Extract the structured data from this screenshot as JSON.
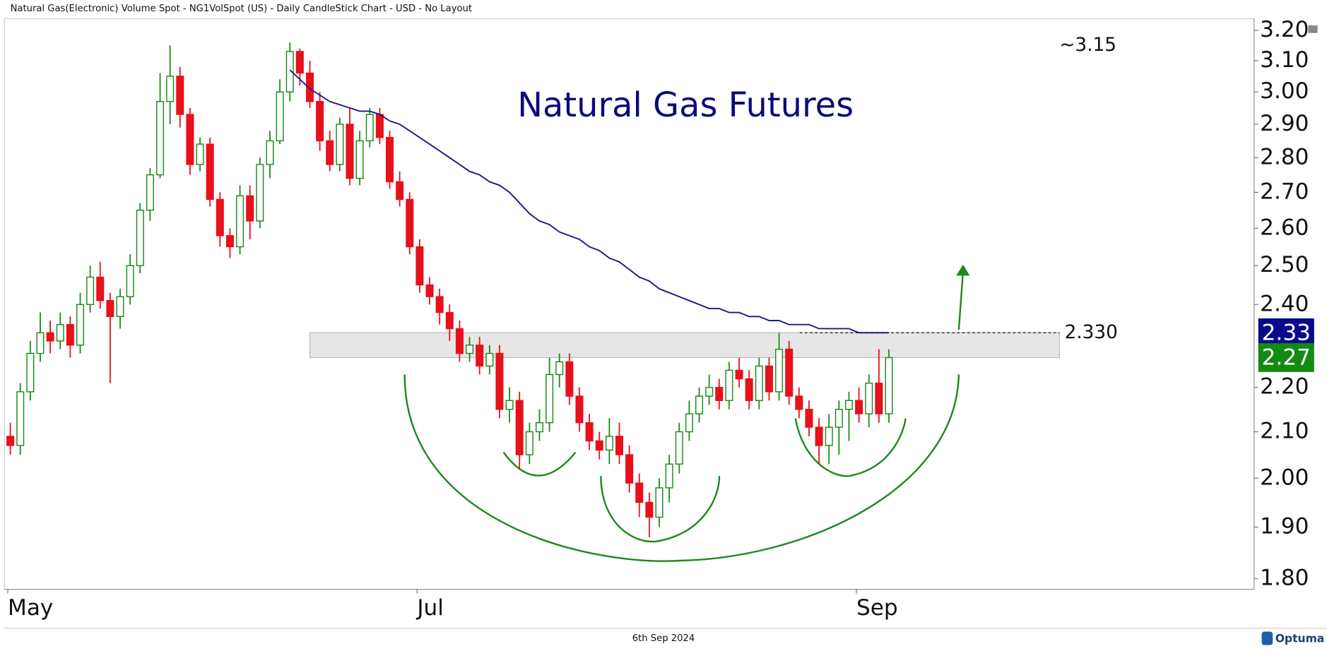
{
  "header": "Natural Gas(Electronic) Volume Spot - NG1VolSpot (US) - Daily CandleStick Chart - USD - No Layout",
  "footer": "6th Sep 2024",
  "brand": "Optuma",
  "chart_data": {
    "type": "candlestick",
    "title": "Natural Gas Futures",
    "annotation": "~3.15",
    "log_scale": true,
    "grid": false,
    "up_color": "#1a8a1a",
    "down_color": "#e8101a",
    "categories": [
      "May",
      null,
      null,
      null,
      null,
      null,
      null,
      null,
      null,
      null,
      null,
      null,
      null,
      null,
      null,
      null,
      null,
      null,
      null,
      null,
      null,
      null,
      null,
      null,
      null,
      null,
      null,
      null,
      null,
      null,
      null,
      null,
      null,
      null,
      null,
      null,
      null,
      null,
      null,
      null,
      null,
      "Jul",
      null,
      null,
      null,
      null,
      null,
      null,
      null,
      null,
      null,
      null,
      null,
      null,
      null,
      null,
      null,
      null,
      null,
      null,
      null,
      null,
      null,
      null,
      null,
      null,
      null,
      null,
      null,
      null,
      null,
      null,
      null,
      null,
      null,
      null,
      null,
      null,
      null,
      null,
      null,
      null,
      null,
      null,
      null,
      "Sep",
      null,
      null,
      null
    ],
    "open": [
      2.09,
      2.07,
      2.19,
      2.28,
      2.33,
      2.31,
      2.35,
      2.3,
      2.4,
      2.47,
      2.41,
      2.37,
      2.42,
      2.5,
      2.65,
      2.75,
      2.97,
      3.05,
      2.93,
      2.78,
      2.84,
      2.68,
      2.58,
      2.55,
      2.69,
      2.62,
      2.78,
      2.85,
      3.0,
      3.13,
      3.06,
      2.97,
      2.85,
      2.78,
      2.9,
      2.74,
      2.85,
      2.93,
      2.86,
      2.73,
      2.68,
      2.55,
      2.45,
      2.42,
      2.38,
      2.34,
      2.28,
      2.3,
      2.25,
      2.28,
      2.15,
      2.17,
      2.05,
      2.1,
      2.12,
      2.23,
      2.26,
      2.18,
      2.12,
      2.08,
      2.06,
      2.09,
      2.05,
      1.99,
      1.95,
      1.92,
      1.98,
      2.03,
      2.1,
      2.14,
      2.18,
      2.2,
      2.17,
      2.24,
      2.22,
      2.17,
      2.25,
      2.19,
      2.29,
      2.18,
      2.15,
      2.11,
      2.07,
      2.11,
      2.15,
      2.17,
      2.14,
      2.21,
      2.14
    ],
    "high": [
      2.12,
      2.21,
      2.31,
      2.38,
      2.36,
      2.38,
      2.37,
      2.43,
      2.5,
      2.51,
      2.43,
      2.44,
      2.53,
      2.67,
      2.77,
      3.06,
      3.15,
      3.08,
      2.95,
      2.86,
      2.86,
      2.7,
      2.6,
      2.72,
      2.72,
      2.8,
      2.88,
      3.04,
      3.16,
      3.14,
      3.1,
      3.0,
      2.88,
      2.92,
      2.95,
      2.88,
      2.95,
      2.95,
      2.88,
      2.76,
      2.7,
      2.57,
      2.47,
      2.44,
      2.4,
      2.36,
      2.32,
      2.32,
      2.3,
      2.3,
      2.2,
      2.19,
      2.12,
      2.15,
      2.27,
      2.28,
      2.28,
      2.2,
      2.14,
      2.1,
      2.13,
      2.12,
      2.07,
      2.01,
      1.97,
      2.0,
      2.05,
      2.12,
      2.17,
      2.2,
      2.23,
      2.22,
      2.26,
      2.27,
      2.24,
      2.27,
      2.27,
      2.33,
      2.31,
      2.2,
      2.17,
      2.13,
      2.14,
      2.17,
      2.19,
      2.2,
      2.23,
      2.29,
      2.29
    ],
    "low": [
      2.05,
      2.05,
      2.17,
      2.26,
      2.28,
      2.29,
      2.27,
      2.28,
      2.38,
      2.39,
      2.21,
      2.34,
      2.4,
      2.48,
      2.62,
      2.74,
      2.9,
      2.89,
      2.75,
      2.76,
      2.66,
      2.55,
      2.52,
      2.53,
      2.57,
      2.6,
      2.74,
      2.84,
      2.97,
      3.02,
      2.95,
      2.82,
      2.76,
      2.76,
      2.72,
      2.72,
      2.83,
      2.84,
      2.71,
      2.66,
      2.53,
      2.43,
      2.4,
      2.35,
      2.31,
      2.26,
      2.26,
      2.23,
      2.23,
      2.13,
      2.12,
      2.02,
      2.03,
      2.08,
      2.1,
      2.2,
      2.16,
      2.1,
      2.06,
      2.04,
      2.03,
      2.03,
      1.97,
      1.92,
      1.88,
      1.9,
      1.95,
      2.01,
      2.08,
      2.12,
      2.16,
      2.15,
      2.15,
      2.2,
      2.15,
      2.15,
      2.17,
      2.17,
      2.16,
      2.13,
      2.09,
      2.03,
      2.03,
      2.05,
      2.08,
      2.12,
      2.11,
      2.12,
      2.12
    ],
    "close": [
      2.07,
      2.19,
      2.28,
      2.33,
      2.31,
      2.35,
      2.3,
      2.4,
      2.47,
      2.41,
      2.37,
      2.42,
      2.5,
      2.65,
      2.75,
      2.97,
      3.05,
      2.93,
      2.78,
      2.84,
      2.68,
      2.58,
      2.55,
      2.69,
      2.62,
      2.78,
      2.85,
      3.0,
      3.13,
      3.06,
      2.97,
      2.85,
      2.78,
      2.9,
      2.74,
      2.85,
      2.93,
      2.86,
      2.73,
      2.68,
      2.55,
      2.45,
      2.42,
      2.38,
      2.34,
      2.28,
      2.3,
      2.25,
      2.28,
      2.15,
      2.17,
      2.05,
      2.1,
      2.12,
      2.23,
      2.26,
      2.18,
      2.12,
      2.08,
      2.06,
      2.09,
      2.05,
      1.99,
      1.95,
      1.92,
      1.98,
      2.03,
      2.1,
      2.14,
      2.18,
      2.2,
      2.17,
      2.24,
      2.22,
      2.17,
      2.25,
      2.19,
      2.29,
      2.18,
      2.15,
      2.11,
      2.07,
      2.11,
      2.15,
      2.17,
      2.14,
      2.21,
      2.14,
      2.27
    ],
    "moving_average": {
      "color": "#1a1a8c",
      "values": [
        null,
        null,
        null,
        null,
        null,
        null,
        null,
        null,
        null,
        null,
        null,
        null,
        null,
        null,
        null,
        null,
        null,
        null,
        null,
        null,
        null,
        null,
        null,
        null,
        null,
        null,
        null,
        null,
        3.07,
        3.04,
        3.01,
        2.99,
        2.97,
        2.96,
        2.95,
        2.94,
        2.94,
        2.93,
        2.91,
        2.9,
        2.88,
        2.86,
        2.84,
        2.82,
        2.8,
        2.78,
        2.76,
        2.75,
        2.73,
        2.72,
        2.7,
        2.67,
        2.64,
        2.62,
        2.61,
        2.59,
        2.58,
        2.57,
        2.55,
        2.54,
        2.52,
        2.51,
        2.49,
        2.47,
        2.46,
        2.44,
        2.43,
        2.42,
        2.41,
        2.4,
        2.39,
        2.39,
        2.38,
        2.38,
        2.37,
        2.37,
        2.36,
        2.36,
        2.35,
        2.35,
        2.35,
        2.34,
        2.34,
        2.34,
        2.34,
        2.33,
        2.33,
        2.33,
        2.33
      ]
    },
    "zone": [
      2.27,
      2.33
    ],
    "level": {
      "value": 2.33,
      "label": "2.330"
    },
    "price_tags": [
      {
        "value": 2.33,
        "color": "#0a0a8c"
      },
      {
        "value": 2.27,
        "color": "#138a13"
      }
    ],
    "ylim": [
      1.78,
      3.24
    ],
    "yticks": [
      {
        "value": 3.2,
        "label": "3.20"
      },
      {
        "value": 3.1,
        "label": "3.10"
      },
      {
        "value": 3.0,
        "label": "3.00"
      },
      {
        "value": 2.9,
        "label": "2.90"
      },
      {
        "value": 2.8,
        "label": "2.80"
      },
      {
        "value": 2.7,
        "label": "2.70"
      },
      {
        "value": 2.6,
        "label": "2.60"
      },
      {
        "value": 2.5,
        "label": "2.50"
      },
      {
        "value": 2.4,
        "label": "2.40"
      },
      {
        "value": 2.2,
        "label": "2.20"
      },
      {
        "value": 2.1,
        "label": "2.10"
      },
      {
        "value": 2.0,
        "label": "2.00"
      },
      {
        "value": 1.9,
        "label": "1.90"
      },
      {
        "value": 1.8,
        "label": "1.80"
      }
    ]
  }
}
